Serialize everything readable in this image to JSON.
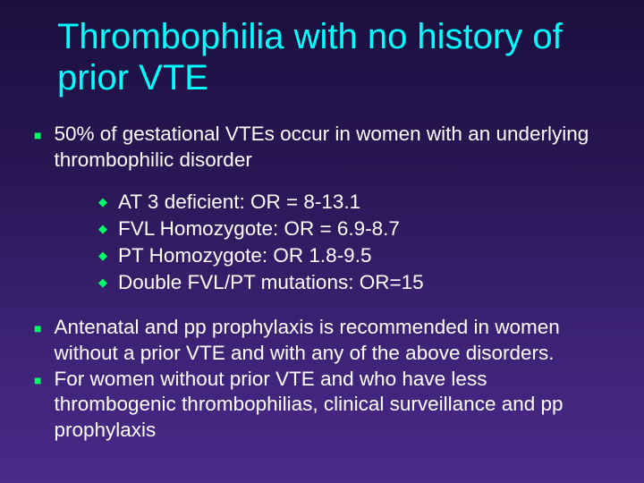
{
  "title": "Thrombophilia with no history of prior VTE",
  "colors": {
    "title_color": "#00ffff",
    "text_color": "#ffffff",
    "bullet_marker_color": "#00ff66",
    "background_gradient_top": "#1a0f3d",
    "background_gradient_bottom": "#4a2a8a"
  },
  "typography": {
    "title_fontsize": 40,
    "body_fontsize": 22.5,
    "sub_fontsize": 22.5,
    "font_family": "Arial"
  },
  "bullets": [
    {
      "text": "50% of gestational VTEs occur in women with an underlying thrombophilic disorder",
      "sub": [
        "AT 3 deficient: OR = 8-13.1",
        "FVL Homozygote: OR = 6.9-8.7",
        "PT Homozygote: OR 1.8-9.5",
        "Double FVL/PT mutations: OR=15"
      ]
    },
    {
      "text": "Antenatal and pp prophylaxis is recommended in women without a prior VTE and with any of the above disorders.",
      "sub": []
    },
    {
      "text": " For women without prior VTE and who have less thrombogenic thrombophilias, clinical surveillance and pp prophylaxis",
      "sub": []
    }
  ],
  "markers": {
    "level1": "■",
    "level2": "◆"
  }
}
